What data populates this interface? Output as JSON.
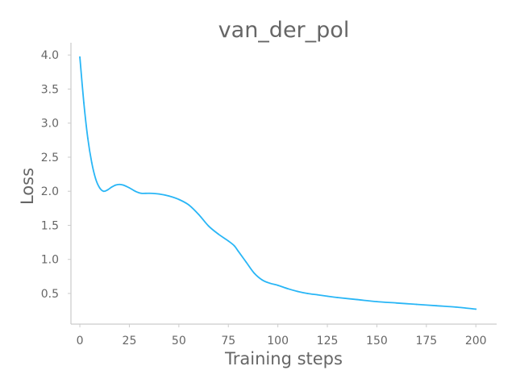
{
  "chart_data": {
    "type": "line",
    "title": "van_der_pol",
    "xlabel": "Training steps",
    "ylabel": "Loss",
    "xlim": [
      -4.5,
      210.5
    ],
    "ylim": [
      0.05,
      4.18
    ],
    "xticks": [
      0,
      25,
      50,
      75,
      100,
      125,
      150,
      175,
      200
    ],
    "yticks": [
      0.5,
      1.0,
      1.5,
      2.0,
      2.5,
      3.0,
      3.5,
      4.0
    ],
    "ytick_labels": [
      "0.5",
      "1.0",
      "1.5",
      "2.0",
      "2.5",
      "3.0",
      "3.5",
      "4.0"
    ],
    "grid": false,
    "legend": "none",
    "series": [
      {
        "color": "#29b6f6",
        "x": [
          0,
          2,
          4,
          6,
          8,
          10,
          12,
          14,
          16,
          18,
          20,
          22,
          25,
          28,
          31,
          35,
          40,
          45,
          50,
          55,
          60,
          65,
          70,
          75,
          78,
          80,
          84,
          88,
          92,
          96,
          100,
          105,
          110,
          115,
          120,
          125,
          130,
          140,
          150,
          160,
          170,
          180,
          190,
          200
        ],
        "values": [
          3.97,
          3.3,
          2.78,
          2.42,
          2.18,
          2.05,
          2.0,
          2.02,
          2.06,
          2.09,
          2.1,
          2.09,
          2.05,
          2.0,
          1.97,
          1.97,
          1.96,
          1.93,
          1.88,
          1.8,
          1.66,
          1.49,
          1.37,
          1.27,
          1.2,
          1.12,
          0.96,
          0.8,
          0.7,
          0.65,
          0.62,
          0.57,
          0.53,
          0.5,
          0.48,
          0.46,
          0.44,
          0.41,
          0.38,
          0.36,
          0.34,
          0.32,
          0.3,
          0.27
        ]
      }
    ]
  }
}
